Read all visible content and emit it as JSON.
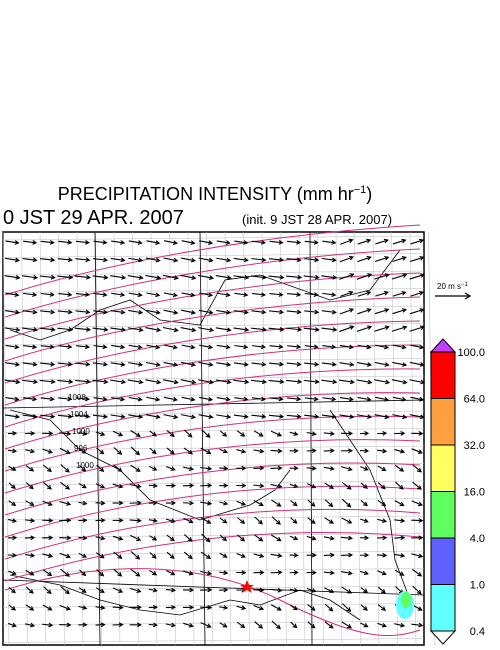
{
  "header": {
    "title": {
      "text": "PRECIPITATION INTENSITY (mm hr",
      "sup": "−1",
      "end": ")"
    },
    "valid_time": "0 JST 29 APR. 2007",
    "init_time": "(init. 9 JST 28 APR. 2007)"
  },
  "wind_legend": {
    "text": "20 m s",
    "sup": "−1"
  },
  "isobar_labels": [
    "1008",
    "1004",
    "1000",
    "996",
    "1000"
  ],
  "colorbar": {
    "labels": [
      "100.0",
      "64.0",
      "32.0",
      "16.0",
      "4.0",
      "1.0",
      "0.4"
    ],
    "over_color": "#c040ff",
    "colors": [
      "#ff0000",
      "#ffa040",
      "#ffff60",
      "#60ff60",
      "#6060ff",
      "#60ffff"
    ],
    "under_color": "#ffffff"
  }
}
